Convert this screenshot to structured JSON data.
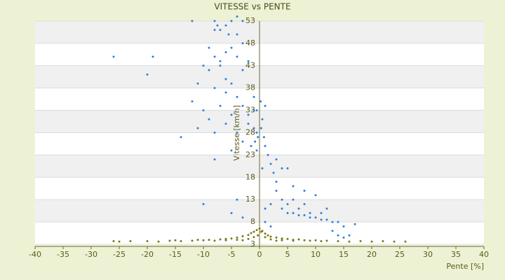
{
  "chart_data": {
    "type": "scatter",
    "title": "VITESSE vs PENTE",
    "x_label": "Pente [%]",
    "y_label": "Vitesse [km/h]",
    "xlim": [
      -40,
      40
    ],
    "xticks": [
      -40,
      -35,
      -30,
      -25,
      -20,
      -15,
      -10,
      -5,
      0,
      5,
      10,
      15,
      20,
      25,
      30,
      35,
      40
    ],
    "ylim": [
      3,
      53
    ],
    "yticks": [
      3,
      8,
      13,
      18,
      23,
      28,
      33,
      38,
      43,
      48,
      53
    ],
    "grid": true,
    "banded": true,
    "series": [
      {
        "color": "#2f7fd8",
        "x": [
          -12,
          -8,
          -7.5,
          -6,
          -5,
          -4,
          -3,
          -8,
          -7,
          -5.5,
          -4,
          -9,
          -8,
          -7,
          -6,
          -5,
          -4,
          -3,
          -26,
          -19,
          -20,
          -10,
          -9,
          -7,
          -6,
          -5,
          -3,
          -2,
          -11,
          -8,
          -6,
          -4,
          -12,
          -10,
          -9,
          -7,
          -5,
          -3,
          -1,
          -0.5,
          -14,
          -11,
          -8,
          -6,
          -4,
          -2,
          -1,
          -0.5,
          -0.3,
          -0.8,
          -8,
          -5,
          -3,
          -1.5,
          -0.5,
          -10,
          -4,
          -3,
          -5,
          0.5,
          0.3,
          0.8,
          1,
          1.5,
          2,
          2.5,
          3,
          3,
          4,
          2,
          1,
          4,
          5,
          6,
          7,
          8,
          9,
          10,
          11,
          12,
          13,
          14,
          15,
          17,
          5,
          7,
          8,
          10,
          8,
          6,
          4,
          5,
          3,
          6,
          9,
          11,
          12,
          13,
          14,
          15,
          16,
          1,
          2,
          0.5,
          0.2,
          1,
          -1,
          -2
        ],
        "values": [
          53,
          53,
          52,
          52,
          53,
          54,
          53,
          51,
          51,
          50,
          50,
          47,
          45,
          44,
          46,
          47,
          45,
          48,
          45,
          45,
          41,
          43,
          42,
          43,
          40,
          39,
          42,
          44,
          39,
          38,
          37,
          36,
          35,
          33,
          31,
          34,
          32,
          34,
          36,
          33,
          27,
          29,
          28,
          30,
          28,
          30,
          29,
          28,
          27,
          26,
          22,
          24,
          26,
          25,
          24,
          12,
          13,
          9,
          10,
          31,
          29,
          27,
          25,
          23,
          21,
          19,
          17,
          15,
          13,
          12,
          11,
          11,
          10,
          10,
          9.5,
          9.5,
          9,
          9,
          8.5,
          8.5,
          8,
          8,
          7,
          7.5,
          12,
          11,
          12,
          14,
          15,
          16,
          20,
          20,
          22,
          13,
          10,
          10,
          11,
          6,
          5,
          4.5,
          5,
          8,
          7,
          20,
          35,
          34,
          33,
          32
        ]
      },
      {
        "color": "#7a7a14",
        "x": [
          -26,
          -25,
          -23,
          -20,
          -18,
          -16,
          -14,
          -12,
          -10,
          -9,
          -8,
          -7,
          -6,
          -5,
          -4,
          -3,
          -2,
          -1.5,
          -1,
          -0.5,
          -0.3,
          0,
          0.3,
          0.5,
          1,
          1.5,
          2,
          3,
          4,
          5,
          6,
          7,
          8,
          9,
          10,
          12,
          14,
          16,
          18,
          20,
          22,
          24,
          26,
          -11,
          -6,
          -4,
          -2,
          2,
          4,
          6,
          11,
          -15,
          -3,
          3,
          -1,
          1
        ],
        "values": [
          3.7,
          3.6,
          3.7,
          3.7,
          3.6,
          3.8,
          3.7,
          3.8,
          3.9,
          4.0,
          3.8,
          4.1,
          4.2,
          4.3,
          4.5,
          4.8,
          5.1,
          5.5,
          5.8,
          6.2,
          5.0,
          6.5,
          5.8,
          6.0,
          5.4,
          5.0,
          4.7,
          4.5,
          4.3,
          4.2,
          4.0,
          4.1,
          3.9,
          3.8,
          3.9,
          3.8,
          3.7,
          3.6,
          3.7,
          3.6,
          3.7,
          3.6,
          3.6,
          4.0,
          3.9,
          4.0,
          4.2,
          4.1,
          3.9,
          3.8,
          3.7,
          3.9,
          3.9,
          3.8,
          4.6,
          4.6
        ]
      }
    ]
  }
}
